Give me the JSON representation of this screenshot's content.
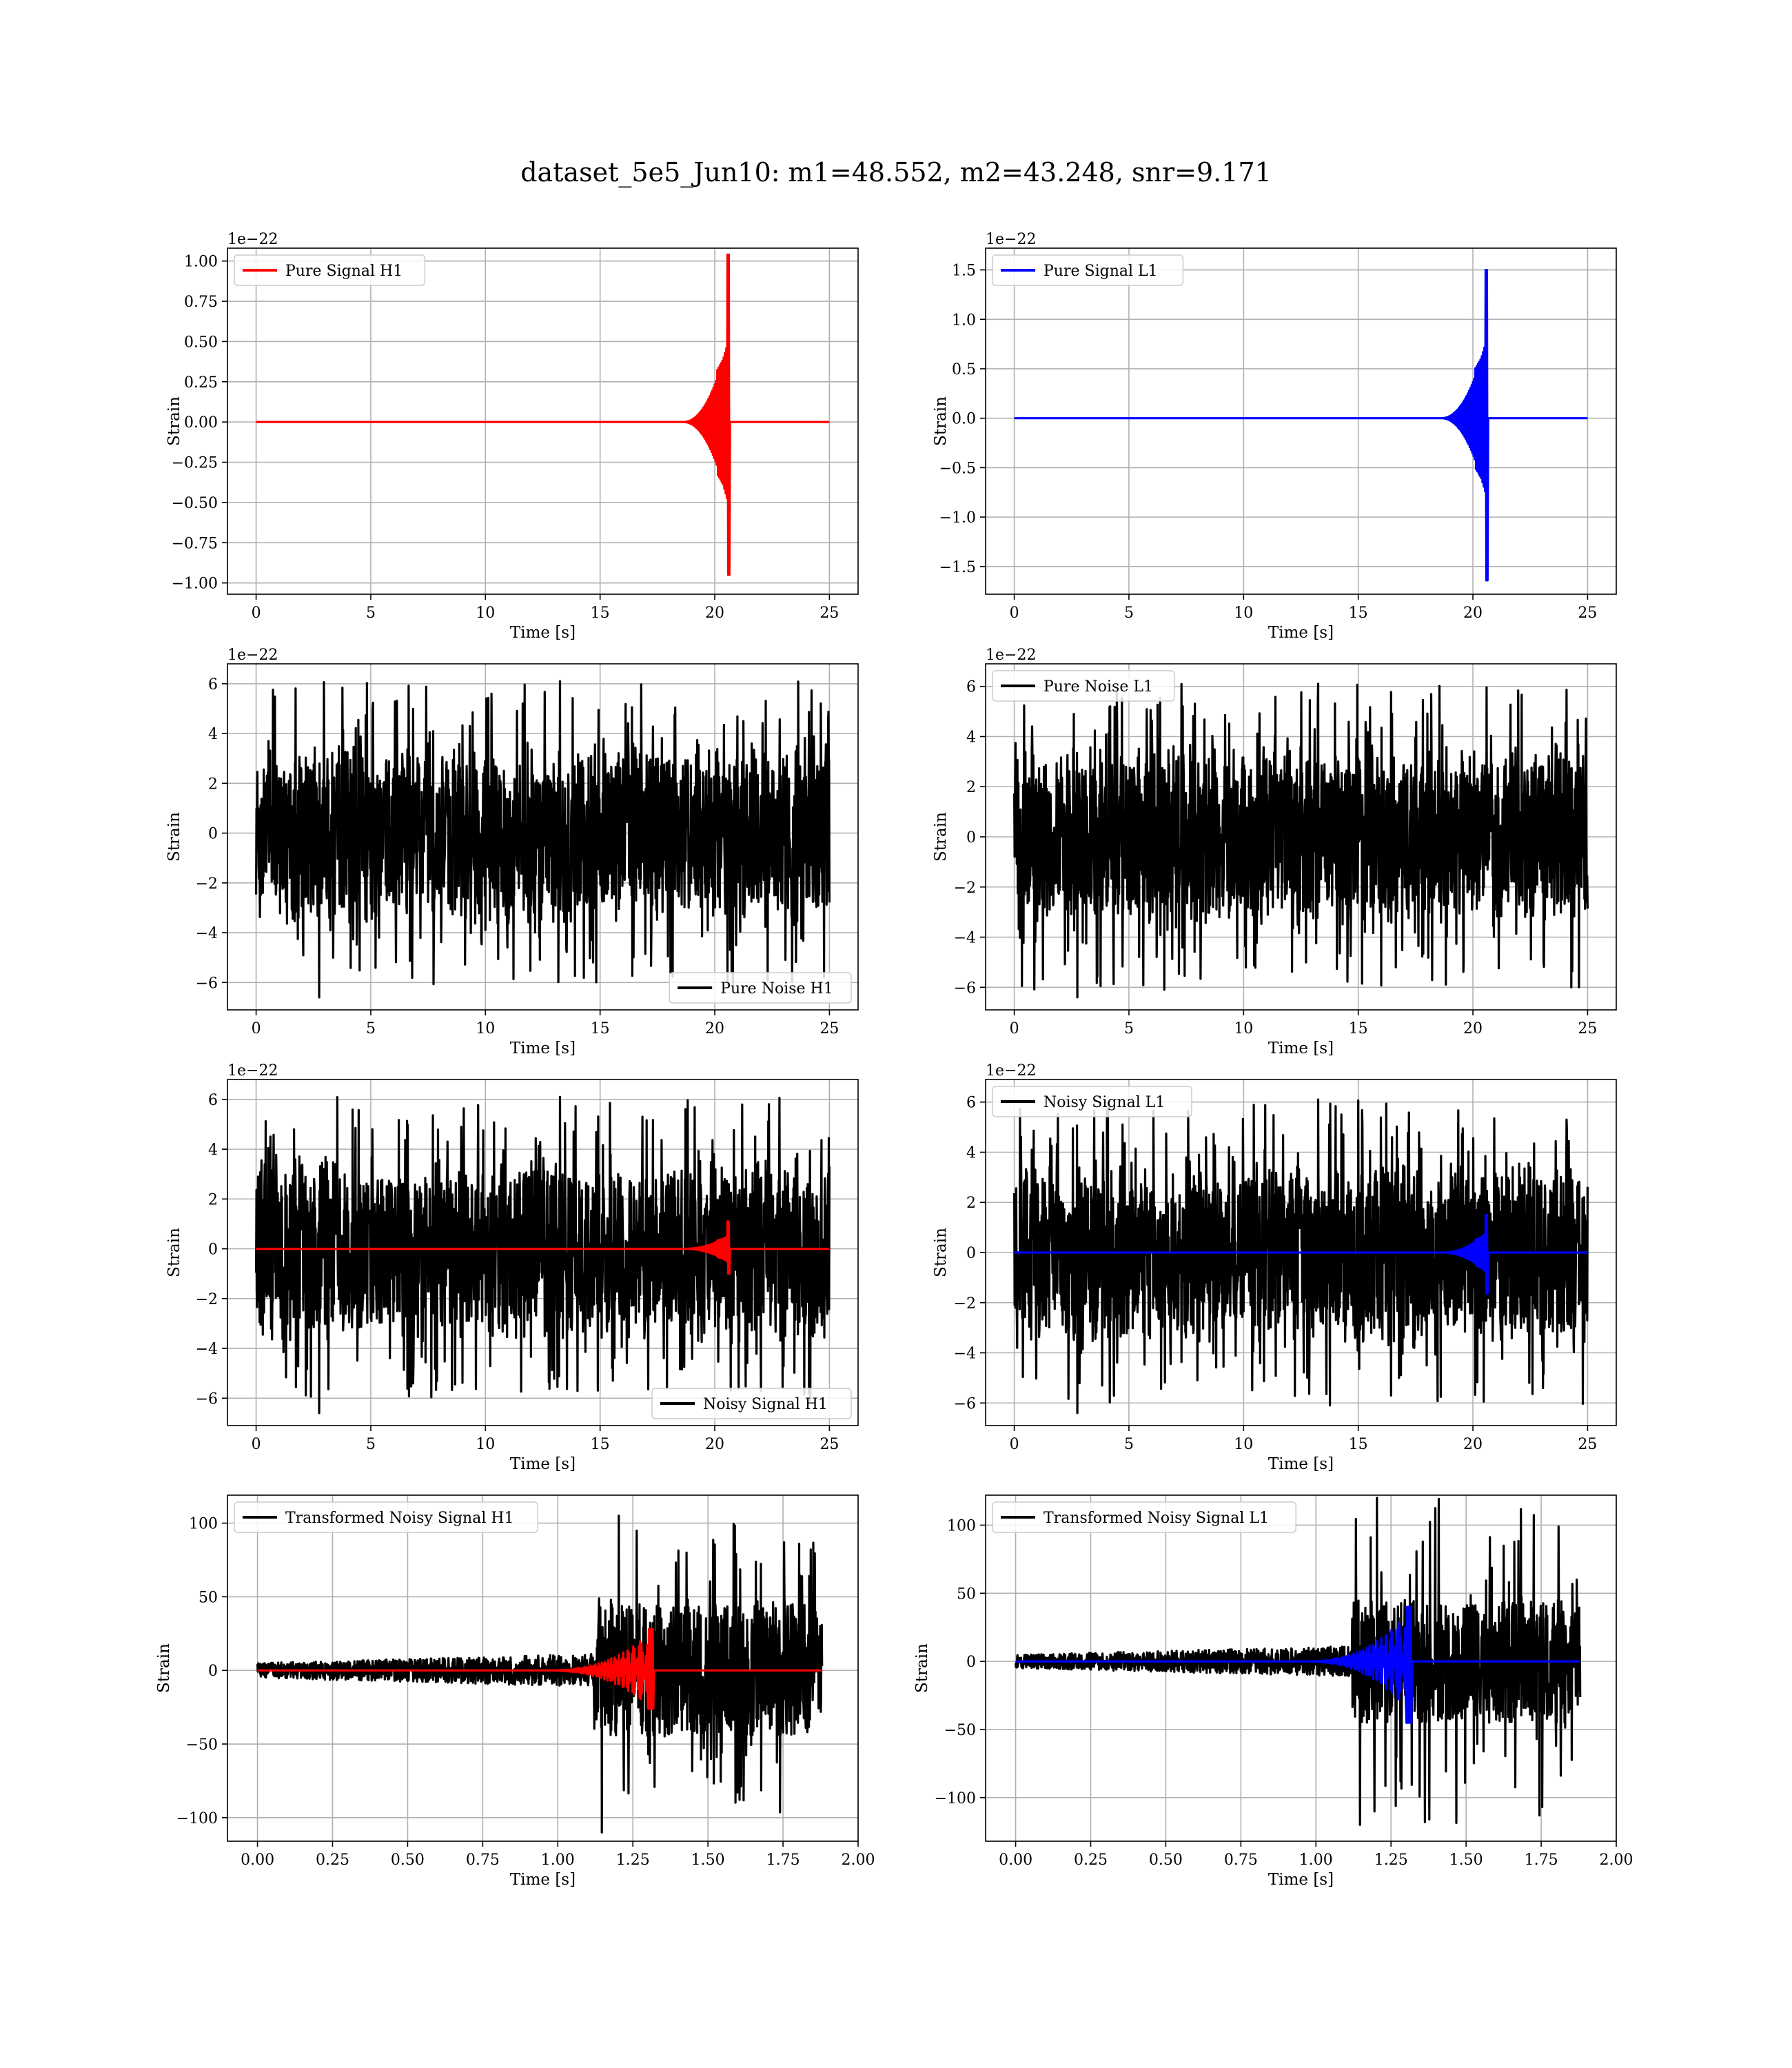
{
  "title": "dataset_5e5_Jun10: m1=48.552, m2=43.248, snr=9.171",
  "colors": {
    "h1": "#ff0000",
    "l1": "#0000ff",
    "noise": "#000000",
    "grid": "#b0b0b0"
  },
  "chart_data": [
    {
      "type": "line",
      "title": "",
      "xlabel": "Time [s]",
      "ylabel": "Strain",
      "offset_text": "1e−22",
      "xlim": [
        -1.25,
        26.25
      ],
      "ylim": [
        -1.07,
        1.08
      ],
      "xticks": [
        0,
        5,
        10,
        15,
        20,
        25
      ],
      "xtick_labels": [
        "0",
        "5",
        "10",
        "15",
        "20",
        "25"
      ],
      "yticks": [
        -1.0,
        -0.75,
        -0.5,
        -0.25,
        0.0,
        0.25,
        0.5,
        0.75,
        1.0
      ],
      "ytick_labels": [
        "−1.00",
        "−0.75",
        "−0.50",
        "−0.25",
        "0.00",
        "0.25",
        "0.50",
        "0.75",
        "1.00"
      ],
      "legend": "top-left",
      "grid": true,
      "series": [
        {
          "name": "Pure Signal H1",
          "color": "#ff0000",
          "kind": "chirp",
          "t_start": 0,
          "t_end": 25,
          "t_merge": 20.6,
          "amp_peak_pos": 1.04,
          "amp_peak_neg": -0.95,
          "amp_inspiral": 0.32
        }
      ]
    },
    {
      "type": "line",
      "title": "",
      "xlabel": "Time [s]",
      "ylabel": "Strain",
      "offset_text": "1e−22",
      "xlim": [
        -1.25,
        26.25
      ],
      "ylim": [
        -1.78,
        1.72
      ],
      "xticks": [
        0,
        5,
        10,
        15,
        20,
        25
      ],
      "xtick_labels": [
        "0",
        "5",
        "10",
        "15",
        "20",
        "25"
      ],
      "yticks": [
        -1.5,
        -1.0,
        -0.5,
        0.0,
        0.5,
        1.0,
        1.5
      ],
      "ytick_labels": [
        "−1.5",
        "−1.0",
        "−0.5",
        "0.0",
        "0.5",
        "1.0",
        "1.5"
      ],
      "legend": "top-left",
      "grid": true,
      "series": [
        {
          "name": "Pure Signal L1",
          "color": "#0000ff",
          "kind": "chirp",
          "t_start": 0,
          "t_end": 25,
          "t_merge": 20.6,
          "amp_peak_pos": 1.5,
          "amp_peak_neg": -1.64,
          "amp_inspiral": 0.5
        }
      ]
    },
    {
      "type": "line",
      "title": "",
      "xlabel": "Time [s]",
      "ylabel": "Strain",
      "offset_text": "1e−22",
      "xlim": [
        -1.25,
        26.25
      ],
      "ylim": [
        -7.1,
        6.8
      ],
      "xticks": [
        0,
        5,
        10,
        15,
        20,
        25
      ],
      "xtick_labels": [
        "0",
        "5",
        "10",
        "15",
        "20",
        "25"
      ],
      "yticks": [
        -6,
        -4,
        -2,
        0,
        2,
        4,
        6
      ],
      "ytick_labels": [
        "−6",
        "−4",
        "−2",
        "0",
        "2",
        "4",
        "6"
      ],
      "legend": "bottom-right",
      "grid": true,
      "series": [
        {
          "name": "Pure Noise H1",
          "color": "#000000",
          "kind": "noise",
          "t_start": 0,
          "t_end": 25,
          "core": 3.4,
          "peak_max": 6.1,
          "peak_min": -6.6
        }
      ]
    },
    {
      "type": "line",
      "title": "",
      "xlabel": "Time [s]",
      "ylabel": "Strain",
      "offset_text": "1e−22",
      "xlim": [
        -1.25,
        26.25
      ],
      "ylim": [
        -6.9,
        6.9
      ],
      "xticks": [
        0,
        5,
        10,
        15,
        20,
        25
      ],
      "xtick_labels": [
        "0",
        "5",
        "10",
        "15",
        "20",
        "25"
      ],
      "yticks": [
        -6,
        -4,
        -2,
        0,
        2,
        4,
        6
      ],
      "ytick_labels": [
        "−6",
        "−4",
        "−2",
        "0",
        "2",
        "4",
        "6"
      ],
      "legend": "top-left",
      "grid": true,
      "series": [
        {
          "name": "Pure Noise L1",
          "color": "#000000",
          "kind": "noise",
          "t_start": 0,
          "t_end": 25,
          "core": 3.4,
          "peak_max": 6.1,
          "peak_min": -6.4
        }
      ]
    },
    {
      "type": "line",
      "title": "",
      "xlabel": "Time [s]",
      "ylabel": "Strain",
      "offset_text": "1e−22",
      "xlim": [
        -1.25,
        26.25
      ],
      "ylim": [
        -7.1,
        6.8
      ],
      "xticks": [
        0,
        5,
        10,
        15,
        20,
        25
      ],
      "xtick_labels": [
        "0",
        "5",
        "10",
        "15",
        "20",
        "25"
      ],
      "yticks": [
        -6,
        -4,
        -2,
        0,
        2,
        4,
        6
      ],
      "ytick_labels": [
        "−6",
        "−4",
        "−2",
        "0",
        "2",
        "4",
        "6"
      ],
      "legend": "bottom-right",
      "grid": true,
      "series": [
        {
          "name": "Noisy Signal H1",
          "color": "#000000",
          "kind": "noise",
          "t_start": 0,
          "t_end": 25,
          "core": 3.4,
          "peak_max": 6.1,
          "peak_min": -6.6
        },
        {
          "color": "#ff0000",
          "kind": "chirp",
          "t_start": 0,
          "t_end": 25,
          "t_merge": 20.6,
          "amp_peak_pos": 1.1,
          "amp_peak_neg": -1.0,
          "amp_inspiral": 0.33
        }
      ]
    },
    {
      "type": "line",
      "title": "",
      "xlabel": "Time [s]",
      "ylabel": "Strain",
      "offset_text": "1e−22",
      "xlim": [
        -1.25,
        26.25
      ],
      "ylim": [
        -6.9,
        6.9
      ],
      "xticks": [
        0,
        5,
        10,
        15,
        20,
        25
      ],
      "xtick_labels": [
        "0",
        "5",
        "10",
        "15",
        "20",
        "25"
      ],
      "yticks": [
        -6,
        -4,
        -2,
        0,
        2,
        4,
        6
      ],
      "ytick_labels": [
        "−6",
        "−4",
        "−2",
        "0",
        "2",
        "4",
        "6"
      ],
      "legend": "top-left",
      "grid": true,
      "series": [
        {
          "name": "Noisy Signal L1",
          "color": "#000000",
          "kind": "noise",
          "t_start": 0,
          "t_end": 25,
          "core": 3.4,
          "peak_max": 6.1,
          "peak_min": -6.4
        },
        {
          "color": "#0000ff",
          "kind": "chirp",
          "t_start": 0,
          "t_end": 25,
          "t_merge": 20.6,
          "amp_peak_pos": 1.5,
          "amp_peak_neg": -1.64,
          "amp_inspiral": 0.5
        }
      ]
    },
    {
      "type": "line",
      "title": "",
      "xlabel": "Time [s]",
      "ylabel": "Strain",
      "offset_text": "",
      "xlim": [
        -0.1,
        2.0
      ],
      "ylim": [
        -116,
        119
      ],
      "xticks": [
        0.0,
        0.25,
        0.5,
        0.75,
        1.0,
        1.25,
        1.5,
        1.75,
        2.0
      ],
      "xtick_labels": [
        "0.00",
        "0.25",
        "0.50",
        "0.75",
        "1.00",
        "1.25",
        "1.50",
        "1.75",
        "2.00"
      ],
      "yticks": [
        -100,
        -50,
        0,
        50,
        100
      ],
      "ytick_labels": [
        "−100",
        "−50",
        "0",
        "50",
        "100"
      ],
      "legend": "top-left",
      "grid": true,
      "series": [
        {
          "name": "Transformed Noisy Signal H1",
          "color": "#000000",
          "kind": "tnoise",
          "t_start": 0,
          "t_end": 1.88,
          "t_jump": 1.12,
          "core_early": 5,
          "core_late": 45,
          "peak_max": 105,
          "peak_min": -110
        },
        {
          "color": "#ff0000",
          "kind": "tchirp",
          "t_start": 0,
          "t_end": 1.88,
          "t_merge": 1.3,
          "amp_peak_pos": 28,
          "amp_peak_neg": -26
        }
      ]
    },
    {
      "type": "line",
      "title": "",
      "xlabel": "Time [s]",
      "ylabel": "Strain",
      "offset_text": "",
      "xlim": [
        -0.1,
        2.0
      ],
      "ylim": [
        -132,
        122
      ],
      "xticks": [
        0.0,
        0.25,
        0.5,
        0.75,
        1.0,
        1.25,
        1.5,
        1.75,
        2.0
      ],
      "xtick_labels": [
        "0.00",
        "0.25",
        "0.50",
        "0.75",
        "1.00",
        "1.25",
        "1.50",
        "1.75",
        "2.00"
      ],
      "yticks": [
        -100,
        -50,
        0,
        50,
        100
      ],
      "ytick_labels": [
        "−100",
        "−50",
        "0",
        "50",
        "100"
      ],
      "legend": "top-left",
      "grid": true,
      "series": [
        {
          "name": "Transformed Noisy Signal L1",
          "color": "#000000",
          "kind": "tnoise",
          "t_start": 0,
          "t_end": 1.88,
          "t_jump": 1.12,
          "core_early": 5,
          "core_late": 45,
          "peak_max": 120,
          "peak_min": -120
        },
        {
          "color": "#0000ff",
          "kind": "tchirp",
          "t_start": 0,
          "t_end": 1.88,
          "t_merge": 1.3,
          "amp_peak_pos": 40,
          "amp_peak_neg": -45
        }
      ]
    }
  ]
}
